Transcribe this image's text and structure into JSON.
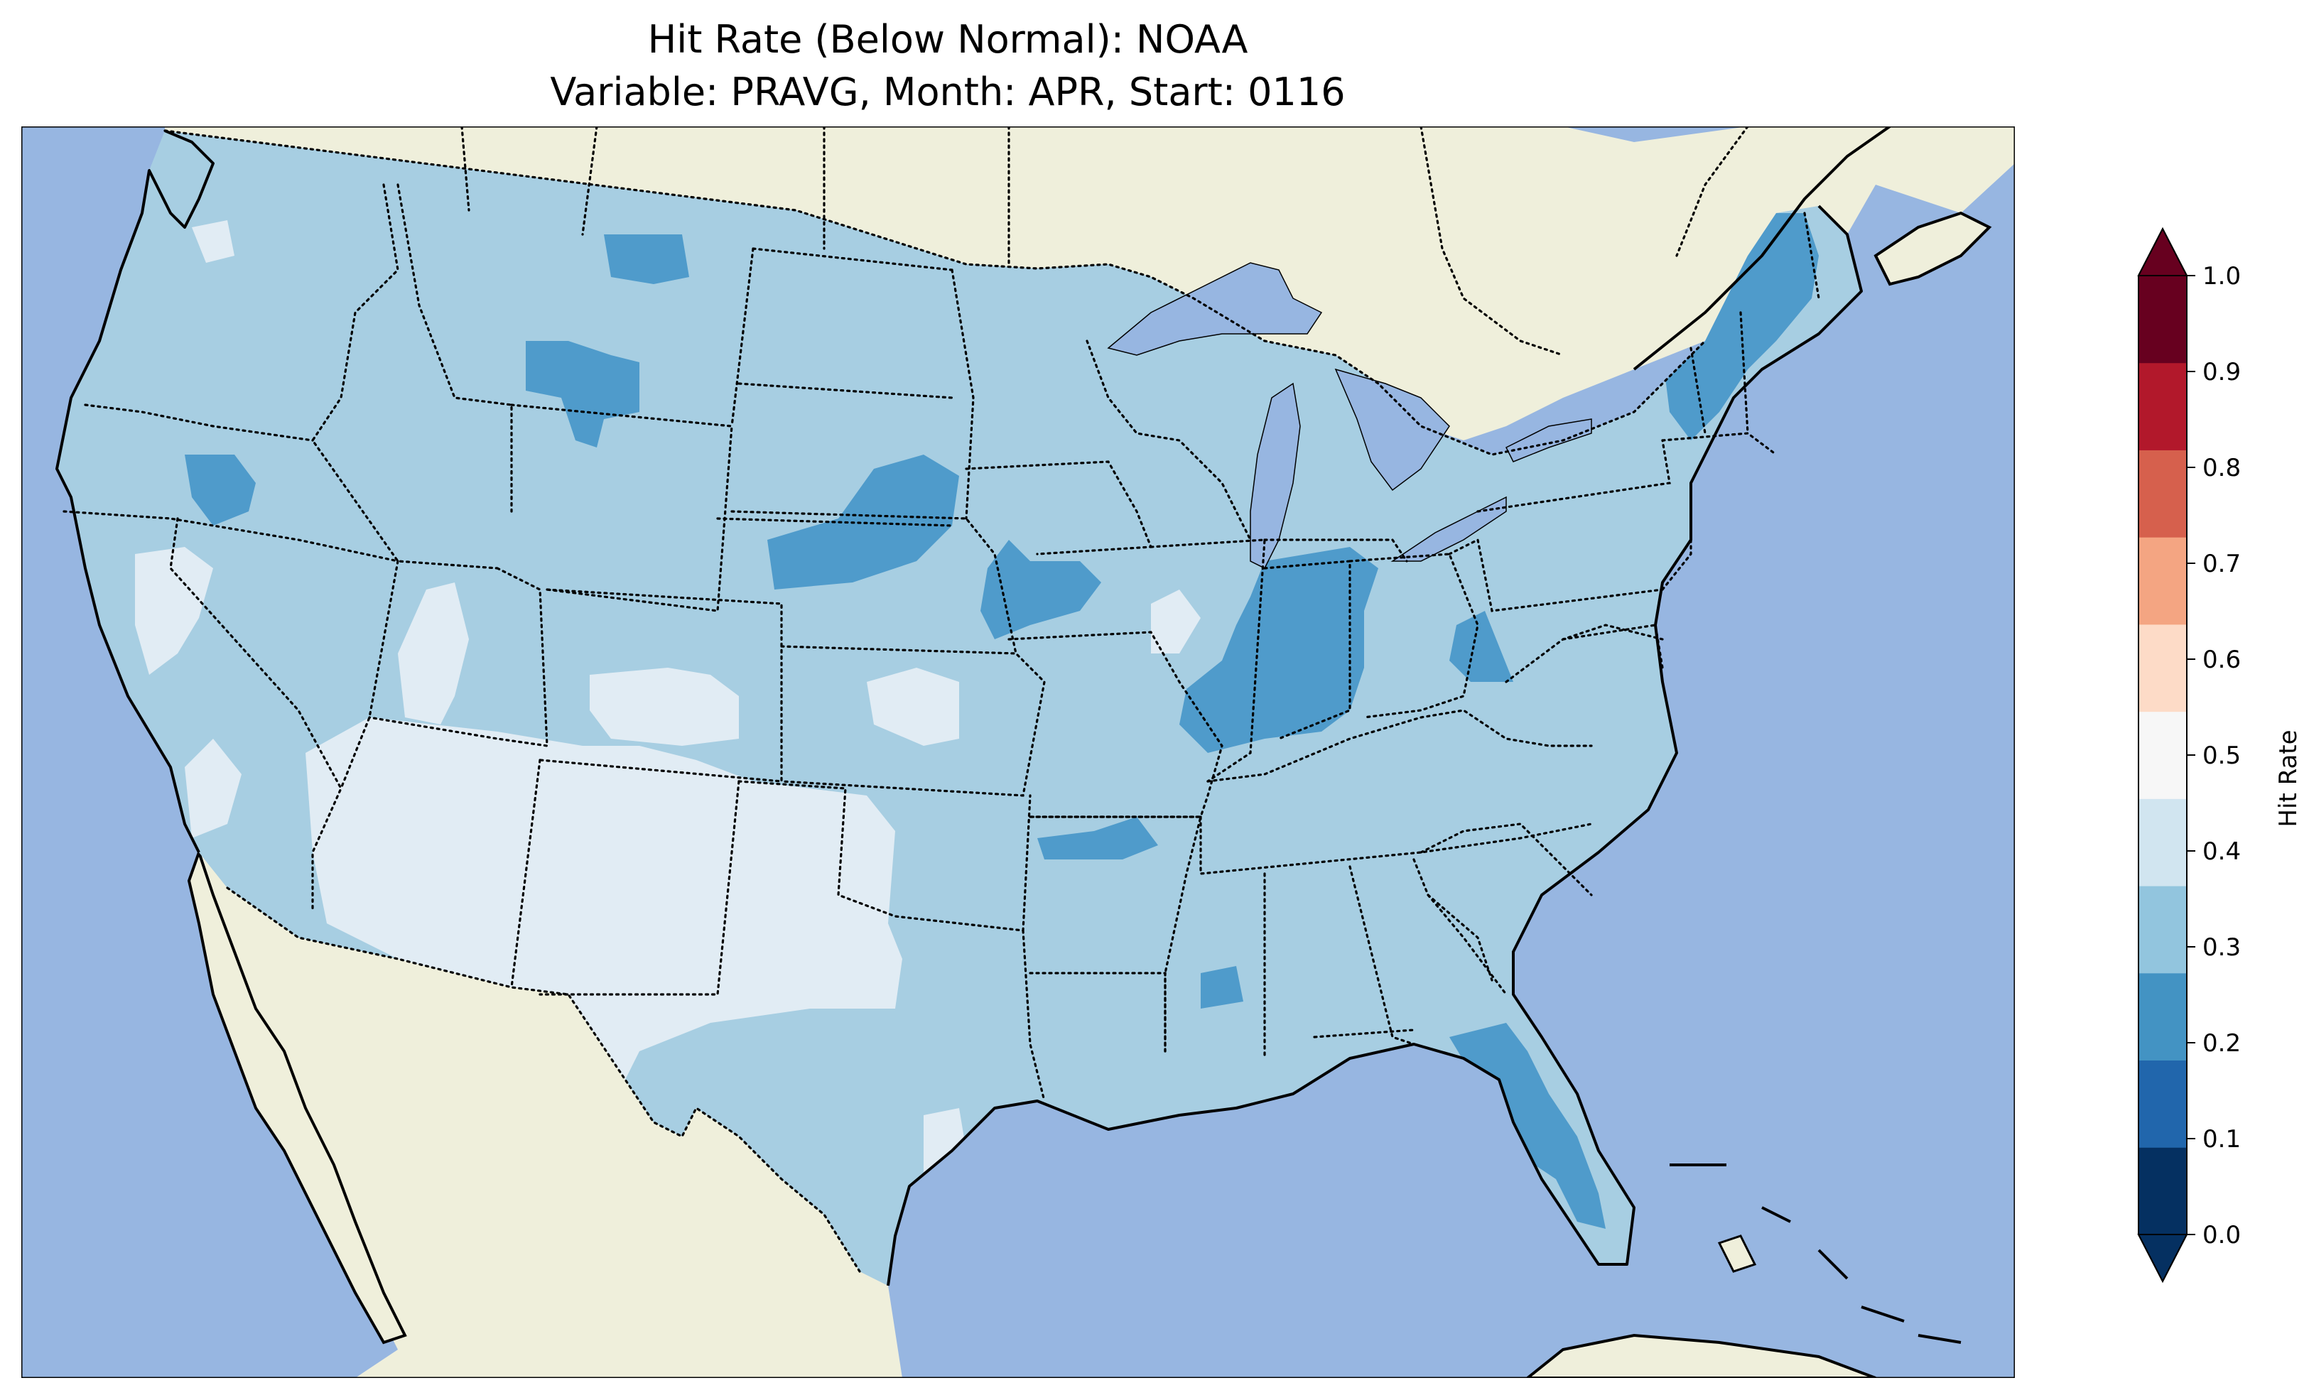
{
  "title": {
    "line1": "Hit Rate (Below Normal): NOAA",
    "line2": "Variable: PRAVG, Month: APR, Start: 0116"
  },
  "colors": {
    "ocean": "#97b6e1",
    "land": "#efefdb",
    "coastline": "#000000"
  },
  "colorbar": {
    "label": "Hit Rate",
    "ticks": [
      "0.0",
      "0.1",
      "0.2",
      "0.3",
      "0.4",
      "0.5",
      "0.6",
      "0.7",
      "0.8",
      "0.9",
      "1.0"
    ],
    "levels": [
      0.0,
      0.1,
      0.2,
      0.3,
      0.4,
      0.5,
      0.6,
      0.7,
      0.8,
      0.9,
      1.0
    ],
    "colors": [
      "#053061",
      "#2166ac",
      "#4393c3",
      "#92c5de",
      "#d1e5f0",
      "#f7f7f7",
      "#fddbc7",
      "#f4a582",
      "#d6604d",
      "#b2182b",
      "#67001f"
    ],
    "extend": "both"
  },
  "chart_data": {
    "type": "heatmap",
    "variable": "PRAVG",
    "month": "APR",
    "start": "0116",
    "model": "NOAA",
    "category": "Below Normal",
    "region": "CONUS",
    "value_range": [
      0.0,
      1.0
    ],
    "dominant_class": "0.3-0.4",
    "regions": [
      {
        "area": "Central and Eastern US (most of domain)",
        "class": "0.3-0.4",
        "color": "#92c5de"
      },
      {
        "area": "Southwest (Arizona, New Mexico, west Texas, southern Nevada, Utah)",
        "class": "0.4-0.5",
        "color": "#d1e5f0"
      },
      {
        "area": "Indiana and eastern Illinois",
        "class": "0.2-0.3",
        "color": "#4393c3"
      },
      {
        "area": "Florida peninsula",
        "class": "0.2-0.3",
        "color": "#4393c3"
      },
      {
        "area": "Nebraska / South Dakota",
        "class": "0.2-0.3",
        "color": "#4393c3"
      },
      {
        "area": "Iowa",
        "class": "0.2-0.3",
        "color": "#4393c3"
      },
      {
        "area": "Vermont / New Hampshire / Maine",
        "class": "0.2-0.3",
        "color": "#4393c3"
      },
      {
        "area": "Central Montana",
        "class": "0.2-0.3",
        "color": "#4393c3"
      },
      {
        "area": "Northern Arkansas",
        "class": "0.2-0.3",
        "color": "#4393c3"
      },
      {
        "area": "West Virginia",
        "class": "0.2-0.3",
        "color": "#4393c3"
      },
      {
        "area": "Northern Nevada / southeastern Oregon",
        "class": "0.2-0.3",
        "color": "#4393c3"
      }
    ]
  }
}
